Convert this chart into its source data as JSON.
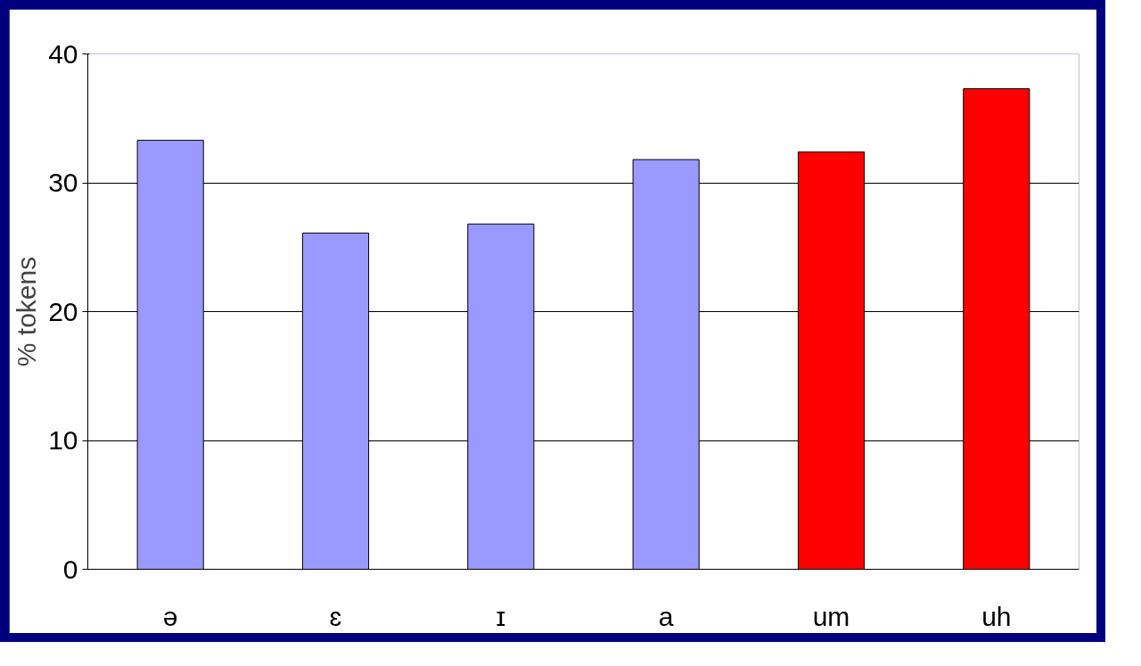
{
  "chart_data": {
    "type": "bar",
    "ylabel": "% tokens",
    "categories": [
      "ə",
      "ɛ",
      "ɪ",
      "a",
      "um",
      "uh"
    ],
    "values": [
      33.3,
      26.1,
      26.8,
      31.8,
      32.4,
      37.3
    ],
    "colors": [
      "#9999ff",
      "#9999ff",
      "#9999ff",
      "#9999ff",
      "#ff0000",
      "#ff0000"
    ],
    "ylim": [
      0,
      40
    ],
    "yticks": [
      0,
      10,
      20,
      30,
      40
    ],
    "grid": "y"
  }
}
